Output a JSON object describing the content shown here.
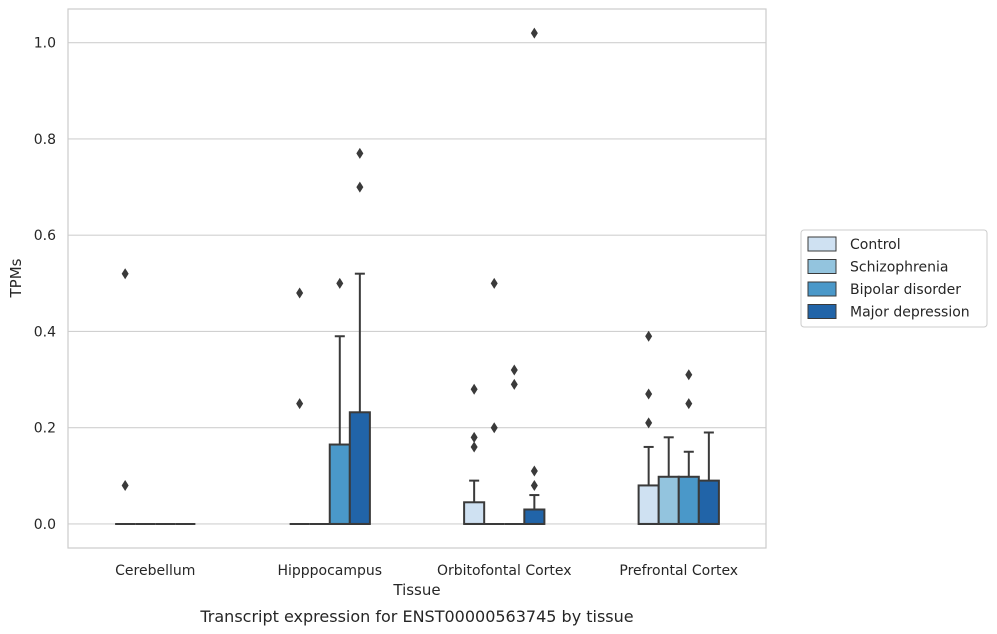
{
  "caption": "Transcript expression for ENST00000563745 by tissue",
  "chart_data": {
    "type": "box",
    "xlabel": "Tissue",
    "ylabel": "TPMs",
    "ylim": [
      -0.05,
      1.07
    ],
    "yticks": [
      "0.0",
      "0.2",
      "0.4",
      "0.6",
      "0.8",
      "1.0"
    ],
    "grid": true,
    "legend_position": "right",
    "categories": [
      "Cerebellum",
      "Hipppocampus",
      "Orbitofontal Cortex",
      "Prefrontal Cortex"
    ],
    "series": [
      {
        "name": "Control",
        "color": "#cfe1f2",
        "boxes": [
          {
            "q1": 0,
            "median": 0,
            "q3": 0,
            "whisker_low": 0,
            "whisker_high": 0,
            "outliers": [
              0.52,
              0.08
            ]
          },
          {
            "q1": 0,
            "median": 0,
            "q3": 0,
            "whisker_low": 0,
            "whisker_high": 0,
            "outliers": [
              0.48,
              0.25
            ]
          },
          {
            "q1": 0,
            "median": 0,
            "q3": 0.045,
            "whisker_low": 0,
            "whisker_high": 0.09,
            "outliers": [
              0.28,
              0.18,
              0.16
            ]
          },
          {
            "q1": 0,
            "median": 0,
            "q3": 0.08,
            "whisker_low": 0,
            "whisker_high": 0.16,
            "outliers": [
              0.39,
              0.27,
              0.21
            ]
          }
        ]
      },
      {
        "name": "Schizophrenia",
        "color": "#93c4de",
        "boxes": [
          {
            "q1": 0,
            "median": 0,
            "q3": 0,
            "whisker_low": 0,
            "whisker_high": 0,
            "outliers": []
          },
          {
            "q1": 0,
            "median": 0,
            "q3": 0,
            "whisker_low": 0,
            "whisker_high": 0,
            "outliers": []
          },
          {
            "q1": 0,
            "median": 0,
            "q3": 0,
            "whisker_low": 0,
            "whisker_high": 0,
            "outliers": [
              0.5,
              0.2
            ]
          },
          {
            "q1": 0,
            "median": 0,
            "q3": 0.098,
            "whisker_low": 0,
            "whisker_high": 0.18,
            "outliers": []
          }
        ]
      },
      {
        "name": "Bipolar disorder",
        "color": "#4a98c9",
        "boxes": [
          {
            "q1": 0,
            "median": 0,
            "q3": 0,
            "whisker_low": 0,
            "whisker_high": 0,
            "outliers": []
          },
          {
            "q1": 0,
            "median": 0,
            "q3": 0.165,
            "whisker_low": 0,
            "whisker_high": 0.39,
            "outliers": [
              0.5
            ]
          },
          {
            "q1": 0,
            "median": 0,
            "q3": 0,
            "whisker_low": 0,
            "whisker_high": 0,
            "outliers": [
              0.32,
              0.29
            ]
          },
          {
            "q1": 0,
            "median": 0,
            "q3": 0.098,
            "whisker_low": 0,
            "whisker_high": 0.15,
            "outliers": [
              0.31,
              0.25
            ]
          }
        ]
      },
      {
        "name": "Major depression",
        "color": "#2164a8",
        "boxes": [
          {
            "q1": 0,
            "median": 0,
            "q3": 0,
            "whisker_low": 0,
            "whisker_high": 0,
            "outliers": []
          },
          {
            "q1": 0,
            "median": 0,
            "q3": 0.232,
            "whisker_low": 0,
            "whisker_high": 0.52,
            "outliers": [
              0.77,
              0.7
            ]
          },
          {
            "q1": 0,
            "median": 0,
            "q3": 0.03,
            "whisker_low": 0,
            "whisker_high": 0.06,
            "outliers": [
              1.02,
              0.11,
              0.08
            ]
          },
          {
            "q1": 0,
            "median": 0,
            "q3": 0.09,
            "whisker_low": 0,
            "whisker_high": 0.19,
            "outliers": []
          }
        ]
      }
    ]
  }
}
